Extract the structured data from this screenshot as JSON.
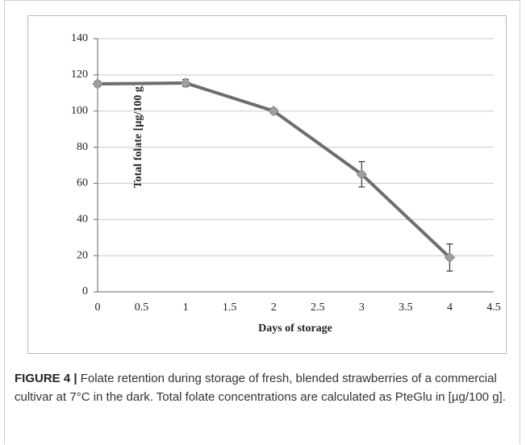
{
  "chart_data": {
    "type": "line",
    "x": [
      0,
      1,
      2,
      3,
      4
    ],
    "values": [
      115,
      115.5,
      100,
      65,
      19
    ],
    "errors": [
      1.5,
      2,
      1.5,
      7,
      7.5
    ],
    "color": "#6e6e6e",
    "marker_color": "#a0a0a0",
    "xlim": [
      0,
      4.5
    ],
    "xticks": [
      0,
      0.5,
      1,
      1.5,
      2,
      2.5,
      3,
      3.5,
      4,
      4.5
    ],
    "ylim": [
      0,
      140
    ],
    "yticks": [
      0,
      20,
      40,
      60,
      80,
      100,
      120,
      140
    ],
    "grid": true,
    "xlabel": "Days of storage",
    "ylabel": "Total folate [µg/100 g]"
  },
  "caption": {
    "label": "FIGURE 4 |",
    "text": "Folate retention during storage of fresh, blended strawberries of a commercial cultivar at 7°C in the dark. Total folate concentrations are calculated as PteGlu in [µg/100 g]."
  }
}
